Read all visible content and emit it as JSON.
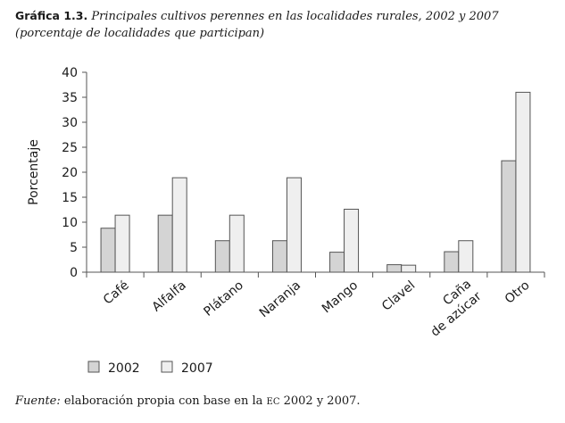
{
  "header": {
    "label": "Gráfica 1.3.",
    "title": "Principales cultivos perennes en las localidades rurales, 2002 y 2007",
    "subtitle": "(porcentaje de localidades que participan)"
  },
  "footer": {
    "prefix": "Fuente:",
    "text_before": " elaboración propia con base en la ",
    "abbr": "EC",
    "text_after": " 2002 y 2007."
  },
  "chart_data": {
    "type": "bar",
    "title": "Principales cultivos perennes en las localidades rurales, 2002 y 2007",
    "subtitle": "(porcentaje de localidades que participan)",
    "xlabel": "",
    "ylabel": "Porcentaje",
    "ylim": [
      0,
      40
    ],
    "yticks": [
      0,
      5,
      10,
      15,
      20,
      25,
      30,
      35,
      40
    ],
    "grid": false,
    "legend_position": "bottom-left",
    "categories": [
      "Café",
      "Alfalfa",
      "Plátano",
      "Naranja",
      "Mango",
      "Clavel",
      "Caña\nde azúcar",
      "Otro"
    ],
    "series": [
      {
        "name": "2002",
        "color": "#d4d4d4",
        "values": [
          8.8,
          11.4,
          6.3,
          6.3,
          4.0,
          1.5,
          4.1,
          22.3
        ]
      },
      {
        "name": "2007",
        "color": "#efefef",
        "values": [
          11.4,
          18.9,
          11.4,
          18.9,
          12.6,
          1.4,
          6.3,
          36.0
        ]
      }
    ]
  }
}
